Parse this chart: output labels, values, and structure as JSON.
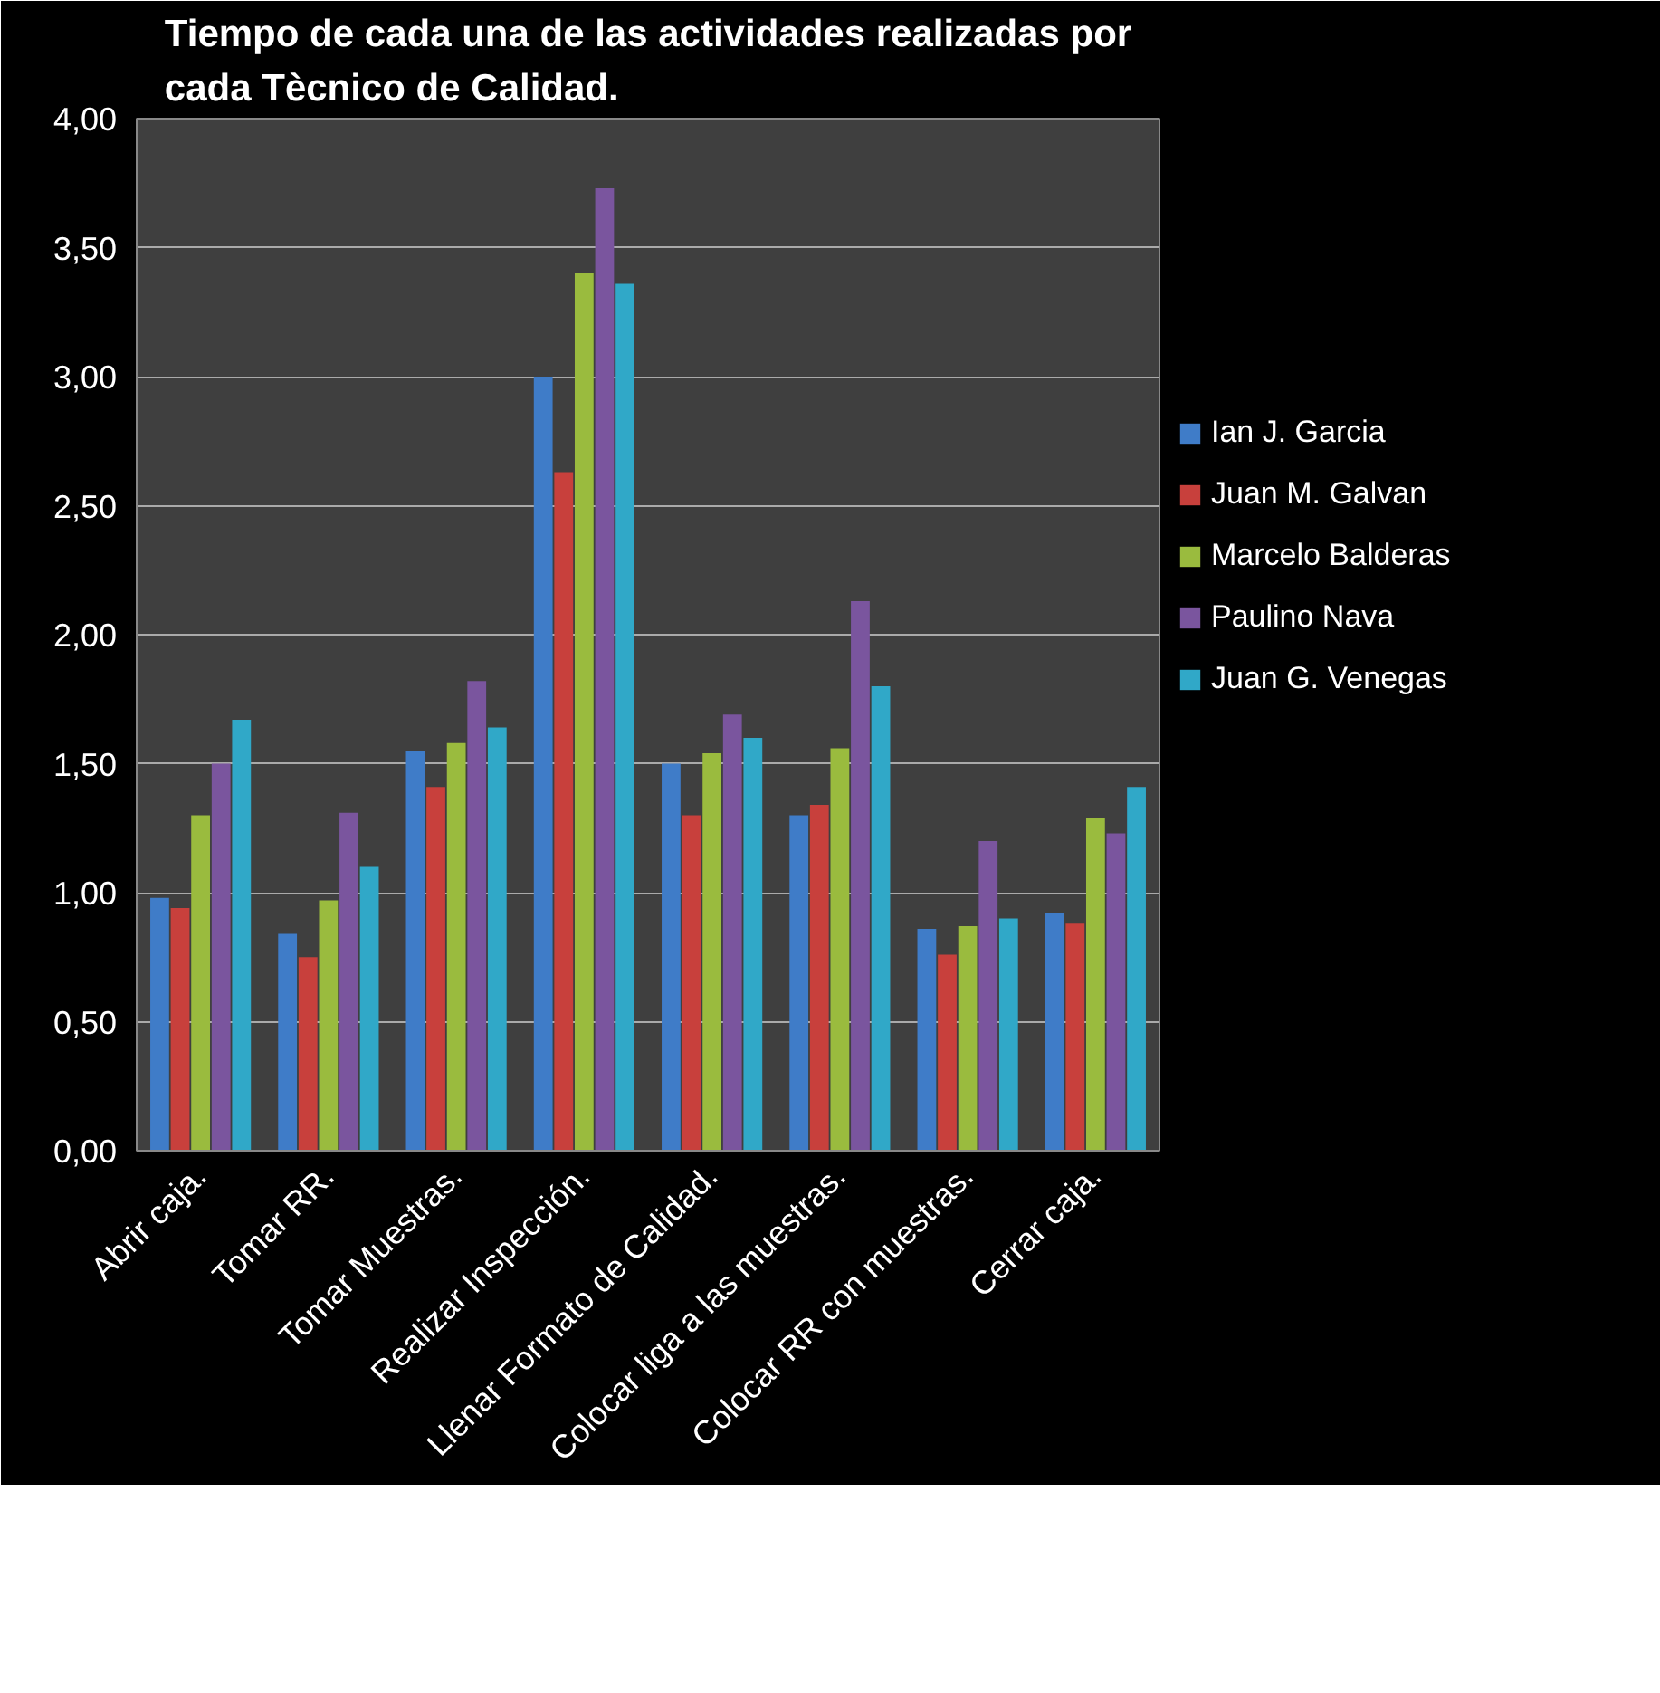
{
  "chart_data": {
    "type": "bar",
    "title": "Tiempo de cada una de las actividades realizadas por\ncada Tècnico de Calidad.",
    "categories": [
      "Abrir caja.",
      "Tomar RR.",
      "Tomar Muestras.",
      "Realizar Inspección.",
      "Llenar Formato de Calidad.",
      "Colocar liga a las muestras.",
      "Colocar RR con muestras.",
      "Cerrar caja."
    ],
    "series": [
      {
        "name": "Ian J. Garcia",
        "color": "#3f7cc8",
        "values": [
          0.98,
          0.84,
          1.55,
          3.0,
          1.5,
          1.3,
          0.86,
          0.92
        ]
      },
      {
        "name": "Juan M. Galvan",
        "color": "#c8403c",
        "values": [
          0.94,
          0.75,
          1.41,
          2.63,
          1.3,
          1.34,
          0.76,
          0.88
        ]
      },
      {
        "name": "Marcelo Balderas",
        "color": "#9abb3e",
        "values": [
          1.3,
          0.97,
          1.58,
          3.4,
          1.54,
          1.56,
          0.87,
          1.29
        ]
      },
      {
        "name": "Paulino Nava",
        "color": "#7a559e",
        "values": [
          1.5,
          1.31,
          1.82,
          3.73,
          1.69,
          2.13,
          1.2,
          1.23
        ]
      },
      {
        "name": "Juan G. Venegas",
        "color": "#30a8c8",
        "values": [
          1.67,
          1.1,
          1.64,
          3.36,
          1.6,
          1.8,
          0.9,
          1.41
        ]
      }
    ],
    "ylim": [
      0,
      4
    ],
    "yticks": [
      {
        "value": 0,
        "label": "0,00"
      },
      {
        "value": 0.5,
        "label": "0,50"
      },
      {
        "value": 1,
        "label": "1,00"
      },
      {
        "value": 1.5,
        "label": "1,50"
      },
      {
        "value": 2,
        "label": "2,00"
      },
      {
        "value": 2.5,
        "label": "2,50"
      },
      {
        "value": 3,
        "label": "3,00"
      },
      {
        "value": 3.5,
        "label": "3,50"
      },
      {
        "value": 4,
        "label": "4,00"
      }
    ],
    "grid": "y",
    "legend": "right"
  }
}
